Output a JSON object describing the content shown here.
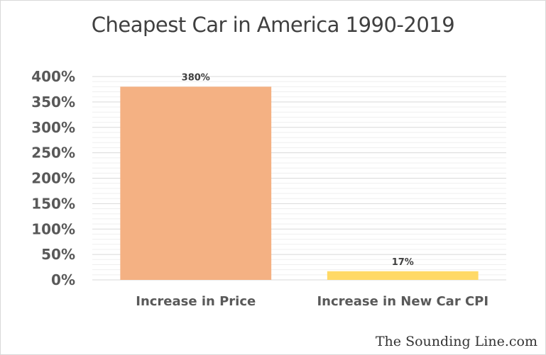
{
  "chart_data": {
    "type": "bar",
    "title": "Cheapest Car in America 1990-2019",
    "categories": [
      "Increase in Price",
      "Increase in New Car CPI"
    ],
    "values": [
      380,
      17
    ],
    "data_labels": [
      "380%",
      "17%"
    ],
    "colors": [
      "#F4B183",
      "#FFD966"
    ],
    "ylim": [
      0,
      400
    ],
    "yticks": [
      "0%",
      "50%",
      "100%",
      "150%",
      "200%",
      "250%",
      "300%",
      "350%",
      "400%"
    ],
    "grid": true,
    "xlabel": "",
    "ylabel": ""
  },
  "watermark": "The Sounding Line.com"
}
